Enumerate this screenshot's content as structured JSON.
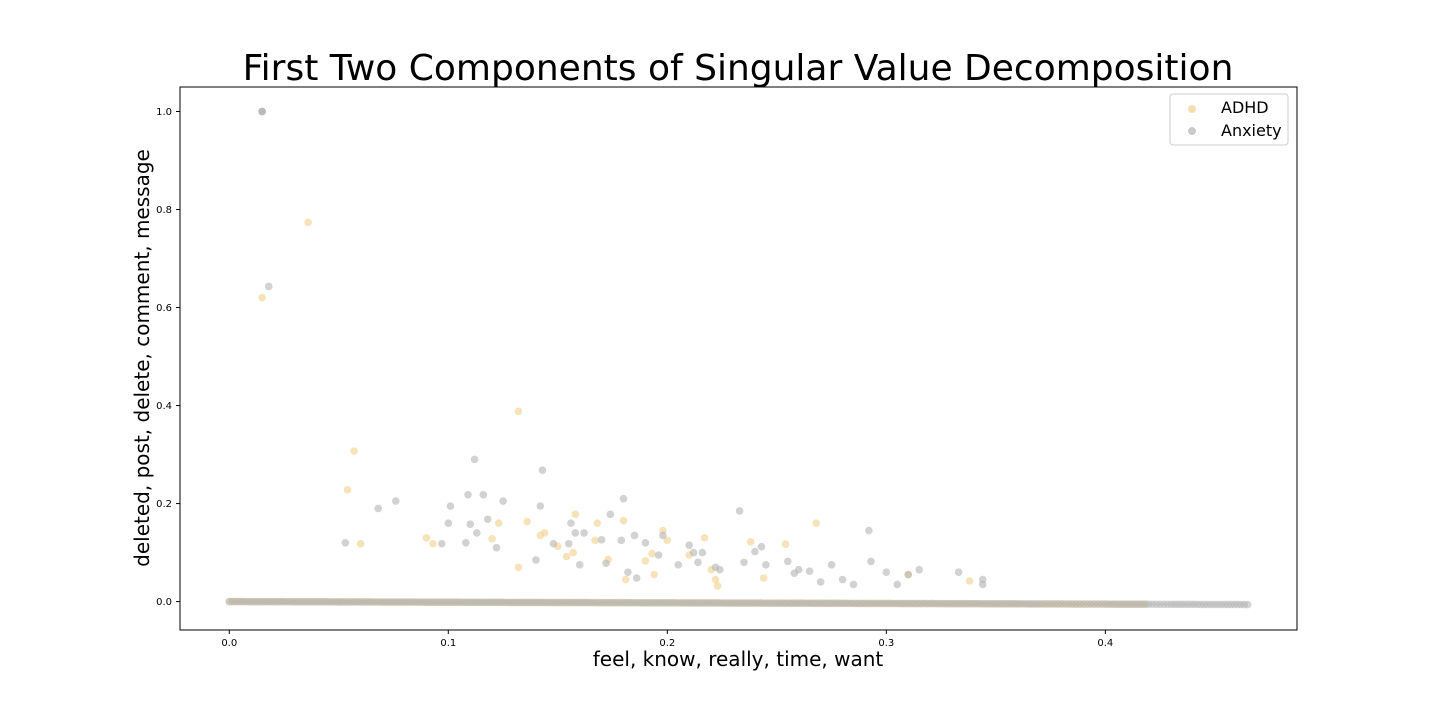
{
  "chart_data": {
    "type": "scatter",
    "title": "First Two Components of Singular Value Decomposition",
    "xlabel": "feel, know, really, time, want",
    "ylabel": "deleted, post, delete, comment, message",
    "xlim": [
      -0.0225,
      0.4875
    ],
    "ylim": [
      -0.058,
      1.05
    ],
    "xticks": [
      0.0,
      0.1,
      0.2,
      0.3,
      0.4
    ],
    "xtick_labels": [
      "0.0",
      "0.1",
      "0.2",
      "0.3",
      "0.4"
    ],
    "yticks": [
      0.0,
      0.2,
      0.4,
      0.6,
      0.8,
      1.0
    ],
    "ytick_labels": [
      "0.0",
      "0.2",
      "0.4",
      "0.6",
      "0.8",
      "1.0"
    ],
    "grid": false,
    "legend_position": "top-right",
    "series": [
      {
        "name": "ADHD",
        "color": "#f2d08a",
        "points": [
          [
            0.015,
            0.62
          ],
          [
            0.036,
            0.774
          ],
          [
            0.054,
            0.228
          ],
          [
            0.057,
            0.307
          ],
          [
            0.06,
            0.118
          ],
          [
            0.09,
            0.13
          ],
          [
            0.093,
            0.118
          ],
          [
            0.12,
            0.128
          ],
          [
            0.123,
            0.16
          ],
          [
            0.132,
            0.388
          ],
          [
            0.132,
            0.07
          ],
          [
            0.136,
            0.163
          ],
          [
            0.142,
            0.135
          ],
          [
            0.144,
            0.14
          ],
          [
            0.15,
            0.113
          ],
          [
            0.154,
            0.092
          ],
          [
            0.157,
            0.1
          ],
          [
            0.158,
            0.178
          ],
          [
            0.167,
            0.125
          ],
          [
            0.168,
            0.16
          ],
          [
            0.173,
            0.086
          ],
          [
            0.18,
            0.165
          ],
          [
            0.181,
            0.045
          ],
          [
            0.19,
            0.083
          ],
          [
            0.193,
            0.098
          ],
          [
            0.194,
            0.055
          ],
          [
            0.198,
            0.145
          ],
          [
            0.2,
            0.125
          ],
          [
            0.21,
            0.095
          ],
          [
            0.217,
            0.13
          ],
          [
            0.22,
            0.065
          ],
          [
            0.222,
            0.045
          ],
          [
            0.223,
            0.032
          ],
          [
            0.238,
            0.122
          ],
          [
            0.244,
            0.048
          ],
          [
            0.254,
            0.117
          ],
          [
            0.268,
            0.16
          ],
          [
            0.31,
            0.055
          ],
          [
            0.338,
            0.042
          ]
        ],
        "band": {
          "y": 0.0,
          "x": [
            0.0,
            0.01,
            0.02,
            0.03,
            0.04,
            0.05,
            0.06,
            0.07,
            0.08,
            0.09,
            0.1,
            0.11,
            0.12,
            0.13,
            0.14,
            0.15,
            0.16,
            0.17,
            0.18,
            0.19,
            0.2,
            0.21,
            0.22,
            0.23,
            0.24,
            0.25,
            0.26,
            0.27,
            0.28,
            0.29,
            0.3,
            0.31,
            0.32,
            0.33,
            0.34,
            0.35,
            0.36,
            0.365,
            0.37,
            0.38,
            0.39,
            0.395,
            0.4,
            0.405,
            0.41,
            0.415,
            0.418
          ]
        }
      },
      {
        "name": "Anxiety",
        "color": "#b4b4b4",
        "points": [
          [
            0.015,
            1.0
          ],
          [
            0.015,
            1.0
          ],
          [
            0.015,
            1.0
          ],
          [
            0.018,
            0.643
          ],
          [
            0.053,
            0.12
          ],
          [
            0.068,
            0.19
          ],
          [
            0.076,
            0.205
          ],
          [
            0.097,
            0.118
          ],
          [
            0.1,
            0.16
          ],
          [
            0.101,
            0.195
          ],
          [
            0.108,
            0.12
          ],
          [
            0.109,
            0.218
          ],
          [
            0.11,
            0.158
          ],
          [
            0.112,
            0.29
          ],
          [
            0.113,
            0.14
          ],
          [
            0.116,
            0.218
          ],
          [
            0.118,
            0.168
          ],
          [
            0.122,
            0.11
          ],
          [
            0.125,
            0.205
          ],
          [
            0.14,
            0.085
          ],
          [
            0.142,
            0.195
          ],
          [
            0.143,
            0.268
          ],
          [
            0.148,
            0.118
          ],
          [
            0.155,
            0.118
          ],
          [
            0.156,
            0.16
          ],
          [
            0.158,
            0.14
          ],
          [
            0.16,
            0.075
          ],
          [
            0.162,
            0.14
          ],
          [
            0.17,
            0.126
          ],
          [
            0.172,
            0.078
          ],
          [
            0.174,
            0.178
          ],
          [
            0.179,
            0.125
          ],
          [
            0.18,
            0.21
          ],
          [
            0.182,
            0.06
          ],
          [
            0.185,
            0.135
          ],
          [
            0.186,
            0.048
          ],
          [
            0.19,
            0.12
          ],
          [
            0.196,
            0.095
          ],
          [
            0.198,
            0.135
          ],
          [
            0.205,
            0.075
          ],
          [
            0.21,
            0.115
          ],
          [
            0.212,
            0.1
          ],
          [
            0.214,
            0.08
          ],
          [
            0.216,
            0.1
          ],
          [
            0.222,
            0.07
          ],
          [
            0.224,
            0.065
          ],
          [
            0.233,
            0.185
          ],
          [
            0.235,
            0.08
          ],
          [
            0.24,
            0.102
          ],
          [
            0.243,
            0.112
          ],
          [
            0.245,
            0.075
          ],
          [
            0.255,
            0.082
          ],
          [
            0.258,
            0.058
          ],
          [
            0.26,
            0.065
          ],
          [
            0.265,
            0.062
          ],
          [
            0.27,
            0.04
          ],
          [
            0.275,
            0.075
          ],
          [
            0.28,
            0.045
          ],
          [
            0.285,
            0.035
          ],
          [
            0.292,
            0.145
          ],
          [
            0.293,
            0.082
          ],
          [
            0.3,
            0.06
          ],
          [
            0.305,
            0.035
          ],
          [
            0.31,
            0.055
          ],
          [
            0.315,
            0.065
          ],
          [
            0.333,
            0.06
          ],
          [
            0.344,
            0.045
          ],
          [
            0.344,
            0.035
          ]
        ],
        "band": {
          "y": 0.0,
          "x": [
            0.0,
            0.01,
            0.02,
            0.03,
            0.04,
            0.05,
            0.06,
            0.07,
            0.08,
            0.09,
            0.1,
            0.11,
            0.12,
            0.13,
            0.14,
            0.15,
            0.16,
            0.17,
            0.18,
            0.19,
            0.2,
            0.21,
            0.22,
            0.23,
            0.24,
            0.25,
            0.26,
            0.27,
            0.28,
            0.29,
            0.3,
            0.31,
            0.32,
            0.33,
            0.34,
            0.35,
            0.36,
            0.37,
            0.375,
            0.38,
            0.385,
            0.39,
            0.395,
            0.4,
            0.41,
            0.42,
            0.425,
            0.43,
            0.465
          ]
        }
      }
    ]
  }
}
